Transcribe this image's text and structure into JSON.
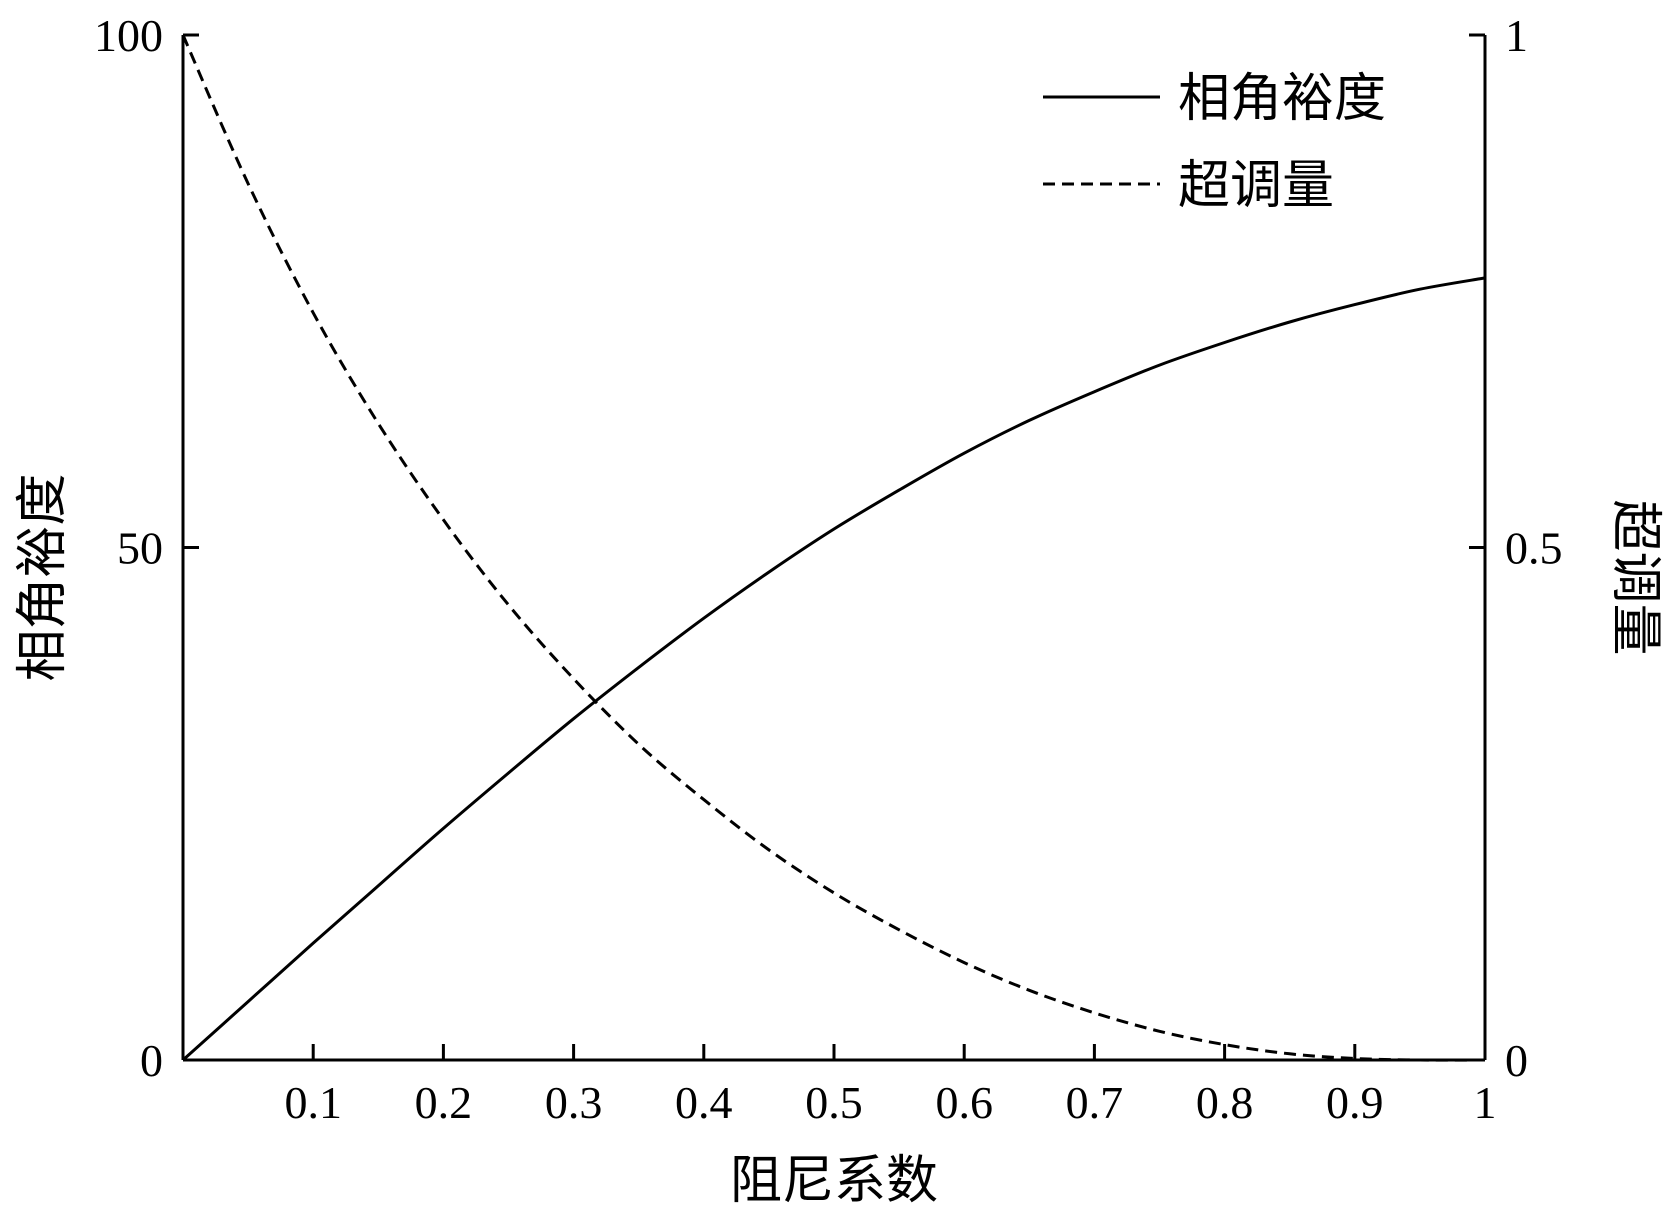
{
  "chart_data": {
    "type": "line",
    "title": "",
    "xlabel": "阻尼系数",
    "ylabel_left": "相角裕度",
    "ylabel_right": "超调量",
    "xlim": [
      0,
      1
    ],
    "ylim_left": [
      0,
      100
    ],
    "ylim_right": [
      0,
      1
    ],
    "x_ticks": [
      "0.1",
      "0.2",
      "0.3",
      "0.4",
      "0.5",
      "0.6",
      "0.7",
      "0.8",
      "0.9",
      "1"
    ],
    "x_tick_values": [
      0.1,
      0.2,
      0.3,
      0.4,
      0.5,
      0.6,
      0.7,
      0.8,
      0.9,
      1.0
    ],
    "y_left_ticks": [
      "0",
      "50",
      "100"
    ],
    "y_left_tick_values": [
      0,
      50,
      100
    ],
    "y_right_ticks": [
      "0",
      "0.5",
      "1"
    ],
    "y_right_tick_values": [
      0,
      0.5,
      1
    ],
    "grid": false,
    "legend_position": "top-right",
    "x": [
      0,
      0.05,
      0.1,
      0.15,
      0.2,
      0.25,
      0.3,
      0.35,
      0.4,
      0.45,
      0.5,
      0.55,
      0.6,
      0.65,
      0.7,
      0.75,
      0.8,
      0.85,
      0.9,
      0.95,
      1.0
    ],
    "series": [
      {
        "name": "相角裕度",
        "axis": "left",
        "style": "solid",
        "values": [
          0,
          5.7,
          11.4,
          17.0,
          22.6,
          28.0,
          33.3,
          38.3,
          43.1,
          47.6,
          51.8,
          55.6,
          59.2,
          62.4,
          65.2,
          67.8,
          70.0,
          72.0,
          73.7,
          75.2,
          76.3
        ]
      },
      {
        "name": "超调量",
        "axis": "right",
        "style": "dashed",
        "values": [
          1.0,
          0.855,
          0.729,
          0.621,
          0.527,
          0.444,
          0.372,
          0.308,
          0.254,
          0.205,
          0.163,
          0.127,
          0.095,
          0.068,
          0.046,
          0.028,
          0.015,
          0.006,
          0.0015,
          0.0,
          0.0
        ]
      }
    ]
  }
}
